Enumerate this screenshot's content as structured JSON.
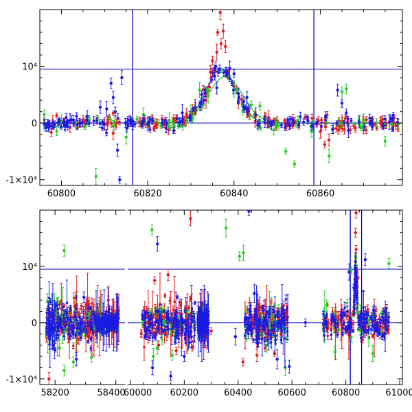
{
  "chart_data": [
    {
      "type": "scatter",
      "panel": "top",
      "title": "",
      "xlabel": "",
      "ylabel": "",
      "xlim": [
        60795,
        60879
      ],
      "ylim": [
        -11000,
        20000
      ],
      "x_tick_labels": [
        "60800",
        "60820",
        "60840",
        "60860"
      ],
      "x_tick_values": [
        60800,
        60820,
        60840,
        60860
      ],
      "y_tick_labels": [
        "-1×10⁴",
        "0",
        "10⁴"
      ],
      "y_tick_values": [
        -10000,
        0,
        10000
      ],
      "colors": {
        "red": "#e41a1c",
        "green": "#22cc22",
        "blue": "#1a1ae6",
        "ref": "#0000cc"
      },
      "reference_lines": {
        "horizontal": [
          0,
          9500
        ],
        "vertical": [
          60816.5,
          60858.5
        ]
      },
      "model_curve": {
        "name": "blue model",
        "peak_x": 60837,
        "peak_y": 9500,
        "width": 3.5
      },
      "model_curve_green": {
        "name": "green model",
        "peak_x": 60838,
        "peak_y": 8200,
        "width": 4
      },
      "series": [
        {
          "name": "red",
          "color": "#e41a1c",
          "points": [
            [
              60836.8,
              19500
            ],
            [
              60836.2,
              16000
            ],
            [
              60837.5,
              16200
            ],
            [
              60836,
              12500
            ],
            [
              60835,
              11000
            ],
            [
              60837,
              14000
            ],
            [
              60838,
              13500
            ],
            [
              60834.5,
              9000
            ],
            [
              60833.5,
              4000
            ],
            [
              60841,
              3500
            ],
            [
              60843,
              2000
            ],
            [
              60845,
              1200
            ],
            [
              60848,
              800
            ],
            [
              60850,
              400
            ],
            [
              60855,
              -500
            ],
            [
              60860,
              -1500
            ],
            [
              60862,
              -3000
            ],
            [
              60863,
              -1000
            ],
            [
              60865,
              300
            ],
            [
              60870,
              -500
            ],
            [
              60874,
              200
            ],
            [
              60877,
              0
            ],
            [
              60812,
              -1800
            ],
            [
              60810,
              -200
            ],
            [
              60805,
              300
            ],
            [
              60802,
              -800
            ],
            [
              60798,
              200
            ],
            [
              60818,
              200
            ],
            [
              60822,
              -400
            ],
            [
              60826,
              800
            ],
            [
              60829,
              1500
            ],
            [
              60831,
              2500
            ],
            [
              60861,
              -3800
            ],
            [
              60878,
              -200
            ]
          ]
        },
        {
          "name": "green",
          "color": "#22cc22",
          "points": [
            [
              60808,
              -9400
            ],
            [
              60812,
              -500
            ],
            [
              60815,
              -2500
            ],
            [
              60819,
              1500
            ],
            [
              60825,
              500
            ],
            [
              60830,
              2000
            ],
            [
              60832,
              5800
            ],
            [
              60834,
              4800
            ],
            [
              60840,
              6000
            ],
            [
              60842,
              3000
            ],
            [
              60844,
              3200
            ],
            [
              60846,
              3000
            ],
            [
              60852,
              -5000
            ],
            [
              60854,
              -7200
            ],
            [
              60858,
              -1500
            ],
            [
              60862,
              -5800
            ],
            [
              60865,
              5500
            ],
            [
              60866,
              6000
            ],
            [
              60870,
              500
            ],
            [
              60875,
              -3200
            ],
            [
              60878,
              -200
            ],
            [
              60800,
              300
            ],
            [
              60796,
              1500
            ]
          ]
        },
        {
          "name": "blue",
          "color": "#1a1ae6",
          "points": [
            [
              60811.5,
              7000
            ],
            [
              60812,
              4500
            ],
            [
              60812.5,
              2000
            ],
            [
              60813,
              -4800
            ],
            [
              60813.5,
              -10000
            ],
            [
              60810.5,
              2500
            ],
            [
              60814,
              8000
            ],
            [
              60816,
              300
            ],
            [
              60820,
              -200
            ],
            [
              60824,
              500
            ],
            [
              60828,
              1800
            ],
            [
              60831,
              2800
            ],
            [
              60833,
              4000
            ],
            [
              60836,
              6200
            ],
            [
              60839,
              9600
            ],
            [
              60840,
              8700
            ],
            [
              60841,
              5200
            ],
            [
              60843,
              4500
            ],
            [
              60845,
              1500
            ],
            [
              60848,
              200
            ],
            [
              60853,
              -500
            ],
            [
              60858,
              -500
            ],
            [
              60864,
              5800
            ],
            [
              60865,
              3500
            ],
            [
              60866,
              1800
            ],
            [
              60869,
              200
            ],
            [
              60872,
              -300
            ],
            [
              60876,
              200
            ],
            [
              60798,
              0
            ],
            [
              60802,
              500
            ],
            [
              60806,
              1200
            ],
            [
              60809,
              2800
            ],
            [
              60866.5,
              -1300
            ]
          ]
        }
      ]
    },
    {
      "type": "scatter",
      "panel": "bottom",
      "title": "",
      "xlabel": "",
      "ylabel": "",
      "axis_break": true,
      "segments": [
        {
          "xlim": [
            58150,
            58430
          ],
          "x_tick_labels": [
            "58200",
            "58400"
          ],
          "x_tick_values": [
            58200,
            58400
          ]
        },
        {
          "xlim": [
            59990,
            61010
          ],
          "x_tick_labels": [
            "60000",
            "60200",
            "60400",
            "60600",
            "60800",
            "61000"
          ],
          "x_tick_values": [
            60000,
            60200,
            60400,
            60600,
            60800,
            61000
          ]
        }
      ],
      "ylim": [
        -11000,
        20000
      ],
      "y_tick_labels": [
        "-1×10⁴",
        "0",
        "10⁴"
      ],
      "y_tick_values": [
        -10000,
        0,
        10000
      ],
      "reference_lines": {
        "horizontal": [
          0,
          9500
        ],
        "vertical": [
          60816.5,
          60858.5
        ]
      },
      "observing_seasons": [
        [
          58170,
          58330,
          5000
        ],
        [
          58330,
          58410,
          2500
        ],
        [
          60040,
          60240,
          5000
        ],
        [
          60250,
          60290,
          3000
        ],
        [
          60425,
          60585,
          4500
        ],
        [
          60715,
          60960,
          3500
        ]
      ],
      "series": [
        {
          "name": "red",
          "color": "#e41a1c",
          "points": [
            [
              60223,
              18500
            ],
            [
              60090,
              7500
            ],
            [
              60140,
              8500
            ],
            [
              60105,
              -4000
            ],
            [
              60170,
              -5000
            ],
            [
              60230,
              -4500
            ],
            [
              60418,
              -7000
            ],
            [
              60470,
              -5800
            ],
            [
              60500,
              -4500
            ],
            [
              60535,
              -5500
            ],
            [
              60580,
              2000
            ],
            [
              60838,
              19500
            ],
            [
              60836,
              16000
            ],
            [
              60838,
              13000
            ],
            [
              60845,
              8000
            ],
            [
              60862,
              -3000
            ],
            [
              60885,
              -800
            ],
            [
              58180,
              -10000
            ],
            [
              58265,
              3000
            ],
            [
              58310,
              -2500
            ],
            [
              58375,
              4000
            ],
            [
              60300,
              -1500
            ]
          ]
        },
        {
          "name": "green",
          "color": "#22cc22",
          "points": [
            [
              58230,
              12800
            ],
            [
              60080,
              16500
            ],
            [
              60085,
              -6000
            ],
            [
              60100,
              -4500
            ],
            [
              60155,
              -5800
            ],
            [
              60205,
              2000
            ],
            [
              60355,
              16800
            ],
            [
              60405,
              11800
            ],
            [
              60420,
              12400
            ],
            [
              60505,
              -4000
            ],
            [
              60535,
              3000
            ],
            [
              60575,
              -8000
            ],
            [
              60760,
              -5200
            ],
            [
              60820,
              9300
            ],
            [
              60900,
              -5500
            ],
            [
              60960,
              10500
            ],
            [
              58175,
              3800
            ],
            [
              58215,
              -4500
            ],
            [
              58260,
              -7000
            ],
            [
              58320,
              -6200
            ],
            [
              58360,
              -1800
            ],
            [
              58230,
              -8500
            ]
          ]
        },
        {
          "name": "blue",
          "color": "#1a1ae6",
          "points": [
            [
              60100,
              14000
            ],
            [
              60082,
              -8000
            ],
            [
              60150,
              -9500
            ],
            [
              60200,
              -6000
            ],
            [
              60220,
              -3500
            ],
            [
              60440,
              19800
            ],
            [
              60390,
              -2500
            ],
            [
              60460,
              5200
            ],
            [
              60510,
              -3000
            ],
            [
              60545,
              -6500
            ],
            [
              60590,
              -7800
            ],
            [
              60650,
              0
            ],
            [
              60812,
              9000
            ],
            [
              60830,
              6200
            ],
            [
              60840,
              4800
            ],
            [
              60872,
              11200
            ],
            [
              60905,
              2000
            ],
            [
              60945,
              -2000
            ],
            [
              58195,
              -4000
            ],
            [
              58295,
              4500
            ],
            [
              58340,
              -1000
            ],
            [
              58270,
              -6500
            ]
          ]
        }
      ]
    }
  ]
}
